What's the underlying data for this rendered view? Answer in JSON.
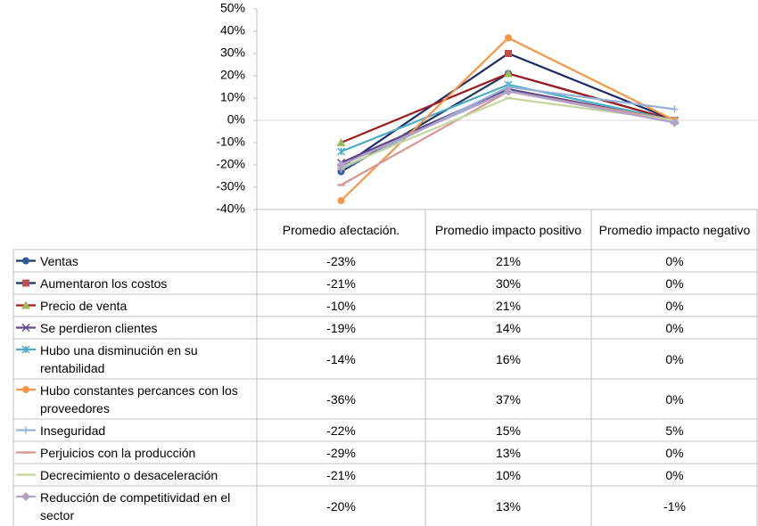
{
  "chart_data": {
    "type": "line",
    "categories": [
      "Promedio afectación.",
      "Promedio impacto positivo",
      "Promedio impacto negativo"
    ],
    "ylim": [
      -40,
      50
    ],
    "yticks": [
      {
        "value": -40,
        "label": "-40%"
      },
      {
        "value": -30,
        "label": "-30%"
      },
      {
        "value": -20,
        "label": "-20%"
      },
      {
        "value": -10,
        "label": "-10%"
      },
      {
        "value": 0,
        "label": "0%"
      },
      {
        "value": 10,
        "label": "10%"
      },
      {
        "value": 20,
        "label": "20%"
      },
      {
        "value": 30,
        "label": "30%"
      },
      {
        "value": 40,
        "label": "40%"
      },
      {
        "value": 50,
        "label": "50%"
      }
    ],
    "series": [
      {
        "name": "Ventas",
        "color": "#1f3864",
        "marker": "circle",
        "marker_color": "#2e5c9a",
        "values": [
          -23,
          21,
          0
        ],
        "value_labels": [
          "-23%",
          "21%",
          "0%"
        ]
      },
      {
        "name": "Aumentaron los costos",
        "color": "#1c2a6b",
        "marker": "square",
        "marker_color": "#c0504d",
        "values": [
          -21,
          30,
          0
        ],
        "value_labels": [
          "-21%",
          "30%",
          "0%"
        ]
      },
      {
        "name": "Precio de venta",
        "color": "#a01c1c",
        "marker": "triangle",
        "marker_color": "#9bbb59",
        "values": [
          -10,
          21,
          0
        ],
        "value_labels": [
          "-10%",
          "21%",
          "0%"
        ]
      },
      {
        "name": "Se perdieron clientes",
        "color": "#5f4b8b",
        "marker": "x",
        "marker_color": "#5f4b8b",
        "values": [
          -19,
          14,
          0
        ],
        "value_labels": [
          "-19%",
          "14%",
          "0%"
        ]
      },
      {
        "name": "Hubo una disminución en su rentabilidad",
        "color": "#4bacc6",
        "marker": "star",
        "marker_color": "#4bacc6",
        "values": [
          -14,
          16,
          0
        ],
        "value_labels": [
          "-14%",
          "16%",
          "0%"
        ]
      },
      {
        "name": "Hubo constantes percances con los proveedores",
        "color": "#f79646",
        "marker": "circle",
        "marker_color": "#f79646",
        "values": [
          -36,
          37,
          0
        ],
        "value_labels": [
          "-36%",
          "37%",
          "0%"
        ]
      },
      {
        "name": "Inseguridad",
        "color": "#95b3d7",
        "marker": "plus",
        "marker_color": "#95b3d7",
        "values": [
          -22,
          15,
          5
        ],
        "value_labels": [
          "-22%",
          "15%",
          "5%"
        ]
      },
      {
        "name": "Perjuicios con la producción",
        "color": "#d99694",
        "marker": "dash",
        "marker_color": "#d99694",
        "values": [
          -29,
          13,
          0
        ],
        "value_labels": [
          "-29%",
          "13%",
          "0%"
        ]
      },
      {
        "name": "Decrecimiento o desaceleración",
        "color": "#c3d69b",
        "marker": "dash",
        "marker_color": "#c3d69b",
        "values": [
          -21,
          10,
          0
        ],
        "value_labels": [
          "-21%",
          "10%",
          "0%"
        ]
      },
      {
        "name": "Reducción de competitividad en el sector",
        "color": "#b3a2c7",
        "marker": "diamond",
        "marker_color": "#b3a2c7",
        "values": [
          -20,
          13,
          -1
        ],
        "value_labels": [
          "-20%",
          "13%",
          "-1%"
        ]
      }
    ]
  }
}
